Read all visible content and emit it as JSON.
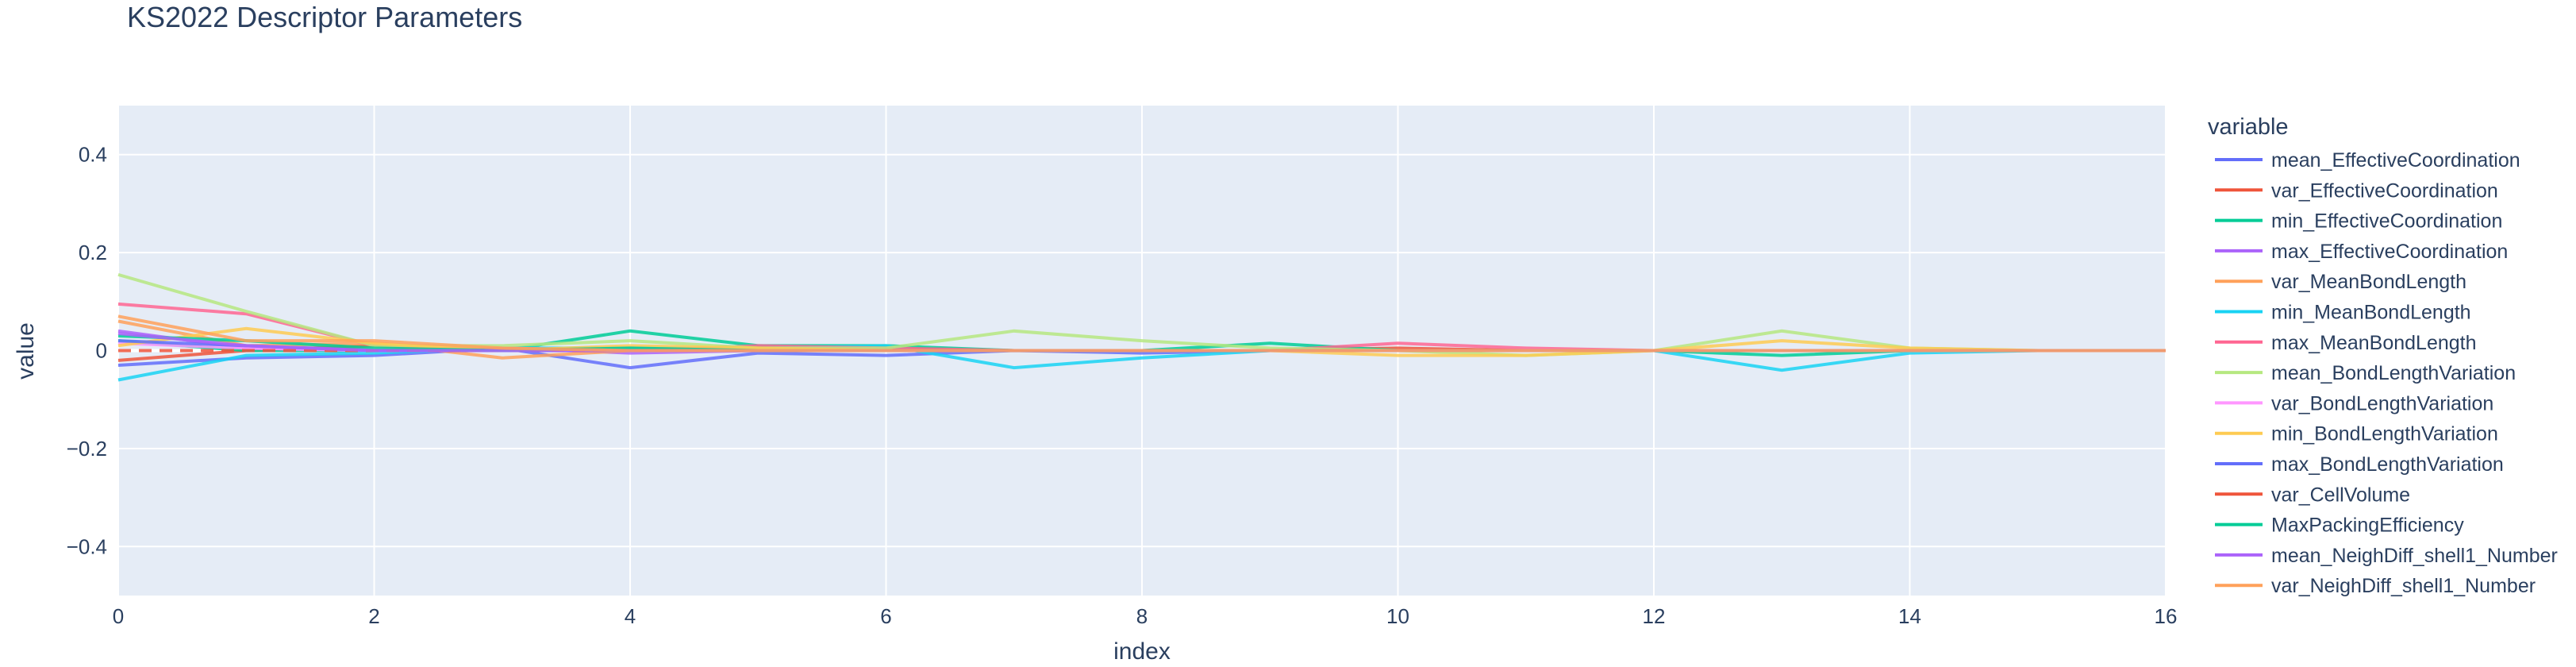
{
  "chart_data": {
    "type": "line",
    "title": "KS2022 Descriptor Parameters",
    "xlabel": "index",
    "ylabel": "value",
    "xlim": [
      0,
      16
    ],
    "ylim": [
      -0.5,
      0.5
    ],
    "x_ticks": [
      0,
      2,
      4,
      6,
      8,
      10,
      12,
      14,
      16
    ],
    "y_ticks": [
      -0.4,
      -0.2,
      0,
      0.2,
      0.4
    ],
    "y_tick_labels": [
      "−0.4",
      "−0.2",
      "0",
      "0.2",
      "0.4"
    ],
    "grid": true,
    "plot_background": "#e5ecf6",
    "legend_title": "variable",
    "legend_position": "right",
    "x": [
      0,
      1,
      2,
      3,
      4,
      5,
      6,
      7,
      8,
      9,
      10,
      11,
      12,
      13,
      14,
      15,
      16
    ],
    "series": [
      {
        "name": "mean_EffectiveCoordination",
        "color": "#636efa",
        "values": [
          -0.03,
          -0.015,
          -0.01,
          0.005,
          -0.035,
          -0.005,
          -0.01,
          0,
          -0.005,
          0,
          0,
          0,
          0,
          0,
          0,
          0,
          0
        ]
      },
      {
        "name": "var_EffectiveCoordination",
        "color": "#EF553B",
        "values": [
          -0.02,
          0,
          0.01,
          0,
          0.005,
          0,
          0.005,
          0,
          0,
          0,
          0.005,
          0,
          0,
          0,
          0,
          0,
          0
        ]
      },
      {
        "name": "min_EffectiveCoordination",
        "color": "#00cc96",
        "values": [
          0.02,
          0,
          0,
          0,
          0.04,
          0.01,
          0.01,
          0,
          0,
          0.015,
          0,
          0,
          0,
          -0.01,
          0,
          0,
          0
        ]
      },
      {
        "name": "max_EffectiveCoordination",
        "color": "#ab63fa",
        "values": [
          0.04,
          0.005,
          0,
          0.005,
          -0.005,
          0,
          0,
          0,
          0,
          0,
          0,
          0,
          0,
          0,
          0,
          0,
          0
        ]
      },
      {
        "name": "var_MeanBondLength",
        "color": "#FFA15A",
        "values": [
          0.06,
          0.01,
          0.015,
          -0.015,
          0,
          0,
          0,
          0,
          0,
          0,
          0,
          0,
          0,
          0,
          0,
          0,
          0
        ]
      },
      {
        "name": "min_MeanBondLength",
        "color": "#19d3f3",
        "values": [
          -0.06,
          -0.01,
          -0.005,
          0.005,
          0.005,
          0.005,
          0.01,
          -0.035,
          -0.015,
          0,
          0,
          0,
          0,
          -0.04,
          -0.005,
          0,
          0
        ]
      },
      {
        "name": "max_MeanBondLength",
        "color": "#FF6692",
        "values": [
          0.095,
          0.075,
          0.01,
          0.005,
          0,
          0.01,
          0.005,
          0,
          0,
          0,
          0.015,
          0.005,
          0,
          0,
          0,
          0,
          0
        ]
      },
      {
        "name": "mean_BondLengthVariation",
        "color": "#B6E880",
        "values": [
          0.155,
          0.08,
          0.01,
          0.01,
          0.02,
          0.005,
          0.005,
          0.04,
          0.02,
          0.005,
          0,
          -0.01,
          0,
          0.04,
          0.005,
          0,
          0
        ]
      },
      {
        "name": "var_BondLengthVariation",
        "color": "#FF97FF",
        "values": [
          0.015,
          0.005,
          0,
          0,
          0,
          0,
          0,
          0,
          0,
          0,
          0,
          0,
          0,
          0,
          0,
          0,
          0
        ]
      },
      {
        "name": "min_BondLengthVariation",
        "color": "#FECB52",
        "values": [
          0.01,
          0.045,
          0.015,
          0,
          0.01,
          0.005,
          0,
          0,
          0,
          0,
          -0.01,
          -0.01,
          0,
          0.02,
          0.005,
          0,
          0
        ]
      },
      {
        "name": "max_BondLengthVariation",
        "color": "#636efa",
        "values": [
          0.02,
          0.01,
          0,
          0,
          0,
          0,
          0,
          0,
          0,
          0,
          0,
          0,
          0,
          0,
          0,
          0,
          0
        ]
      },
      {
        "name": "var_CellVolume",
        "color": "#EF553B",
        "values": [
          0,
          0,
          0,
          0,
          0,
          0,
          0,
          0,
          0,
          0,
          0,
          0,
          0,
          0,
          0,
          0,
          0
        ]
      },
      {
        "name": "MaxPackingEfficiency",
        "color": "#00cc96",
        "values": [
          0.03,
          0.02,
          0.005,
          0,
          0.005,
          0,
          0,
          0,
          0,
          0,
          0,
          0,
          0,
          0,
          0,
          0,
          0
        ]
      },
      {
        "name": "mean_NeighDiff_shell1_Number",
        "color": "#ab63fa",
        "values": [
          0.035,
          0.01,
          0,
          0,
          0,
          0,
          0,
          0,
          0,
          0,
          0,
          0,
          0,
          0,
          0,
          0,
          0
        ]
      },
      {
        "name": "var_NeighDiff_shell1_Number",
        "color": "#FFA15A",
        "values": [
          0.07,
          0.02,
          0.02,
          0.005,
          0,
          0,
          0,
          0,
          0,
          0,
          0,
          0,
          0,
          0,
          0,
          0,
          0
        ]
      }
    ]
  }
}
